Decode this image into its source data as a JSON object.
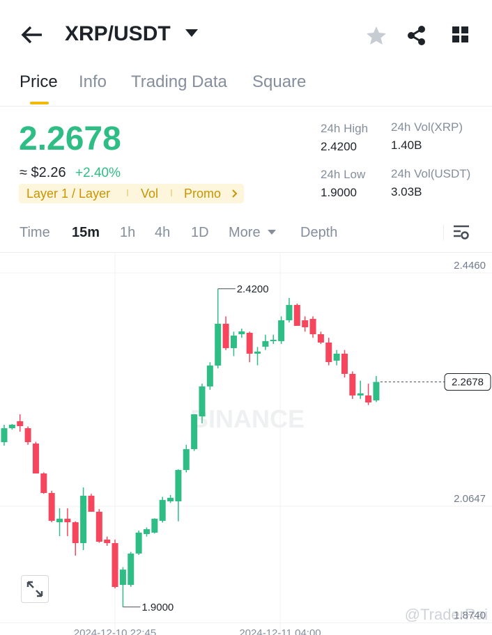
{
  "header": {
    "title": "XRP/USDT"
  },
  "tabs": [
    "Price",
    "Info",
    "Trading Data",
    "Square"
  ],
  "price": {
    "last": "2.2678",
    "usd": "≈ $2.26",
    "change": "+2.40%"
  },
  "tags": [
    "Layer 1 / Layer",
    "Vol",
    "Promo"
  ],
  "stats": [
    {
      "label": "24h High",
      "value": "2.4200"
    },
    {
      "label": "24h Vol(XRP)",
      "value": "1.40B"
    },
    {
      "label": "24h Low",
      "value": "1.9000"
    },
    {
      "label": "24h Vol(USDT)",
      "value": "3.03B"
    }
  ],
  "intervals": [
    "Time",
    "15m",
    "1h",
    "4h",
    "1D",
    "More",
    "Depth"
  ],
  "watermarks": [
    "BINANCE",
    "@TraderRai"
  ],
  "chart_data": {
    "type": "candlestick",
    "open": [
      2.1694,
      2.1922,
      2.2036,
      2.1922,
      2.1671,
      2.1182,
      2.0863,
      2.0385,
      2.0442,
      2.0385,
      2.0044,
      2.0818,
      2.0556,
      2.0101,
      2.0044,
      1.9361,
      1.9361,
      1.9873,
      2.0192,
      2.0215,
      2.0408,
      2.0727,
      2.0727,
      2.1239,
      2.158,
      2.2115,
      2.2605,
      2.2946,
      2.3629,
      2.3231,
      2.3458,
      2.3481,
      2.314,
      2.3254,
      2.3345,
      2.3345,
      2.3686,
      2.3936,
      2.3686,
      2.3709,
      2.3458,
      2.3322,
      2.3026,
      2.314,
      2.281,
      2.2457,
      2.2457,
      2.2377
    ],
    "high": [
      2.1979,
      2.199,
      2.2149,
      2.195,
      2.17,
      2.12,
      2.09,
      2.0613,
      2.0613,
      2.04,
      2.0954,
      2.085,
      2.06,
      2.015,
      2.0101,
      1.965,
      1.99,
      2.025,
      2.03,
      2.045,
      2.08,
      2.083,
      2.125,
      2.165,
      2.2149,
      2.265,
      2.3,
      2.42,
      2.375,
      2.35,
      2.355,
      2.35,
      2.325,
      2.345,
      2.345,
      2.375,
      2.405,
      2.396,
      2.375,
      2.375,
      2.35,
      2.34,
      2.32,
      2.32,
      2.285,
      2.27,
      2.265,
      2.2776
    ],
    "low": [
      2.1637,
      2.19,
      2.1865,
      2.165,
      2.1182,
      2.085,
      2.0385,
      2.0158,
      2.0158,
      1.9839,
      1.993,
      2.0556,
      2.005,
      2.0,
      1.9304,
      1.9,
      1.933,
      1.985,
      2.015,
      2.02,
      2.038,
      2.07,
      2.04,
      2.12,
      2.155,
      2.2,
      2.255,
      2.29,
      2.32,
      2.31,
      2.34,
      2.3,
      2.295,
      2.32,
      2.33,
      2.33,
      2.365,
      2.3595,
      2.35,
      2.34,
      2.33,
      2.295,
      2.295,
      2.275,
      2.24,
      2.24,
      2.23,
      2.235
    ],
    "close": [
      2.1922,
      2.1979,
      2.1956,
      2.1694,
      2.1182,
      2.0863,
      2.0408,
      2.0442,
      2.0385,
      2.0044,
      2.0818,
      2.0556,
      2.0067,
      2.0044,
      1.9327,
      1.9611,
      1.9873,
      2.0215,
      2.0271,
      2.0442,
      2.0749,
      2.0784,
      2.1239,
      2.158,
      2.2149,
      2.2605,
      2.2946,
      2.3629,
      2.3231,
      2.3436,
      2.3504,
      2.314,
      2.3174,
      2.3345,
      2.3367,
      2.3686,
      2.3936,
      2.3595,
      2.3572,
      2.3458,
      2.3322,
      2.3003,
      2.314,
      2.281,
      2.2457,
      2.2491,
      2.2343,
      2.2678
    ],
    "ylim": [
      1.8542,
      2.4801
    ],
    "yticks": [
      {
        "value": 2.446,
        "label": "2.4460"
      },
      {
        "value": 2.0647,
        "label": "2.0647"
      },
      {
        "value": 1.874,
        "label": "1.8740"
      }
    ],
    "x_labels": [
      "2024-12-10 22:45",
      "2024-12-11 04:00"
    ],
    "annotations": [
      {
        "value": 2.42,
        "label": "2.4200"
      },
      {
        "value": 1.9,
        "label": "1.9000"
      }
    ],
    "last_price": {
      "value": 2.2678,
      "label": "2.2678"
    },
    "up_color": "#2ebd85",
    "down_color": "#f6465d",
    "grid": true
  }
}
